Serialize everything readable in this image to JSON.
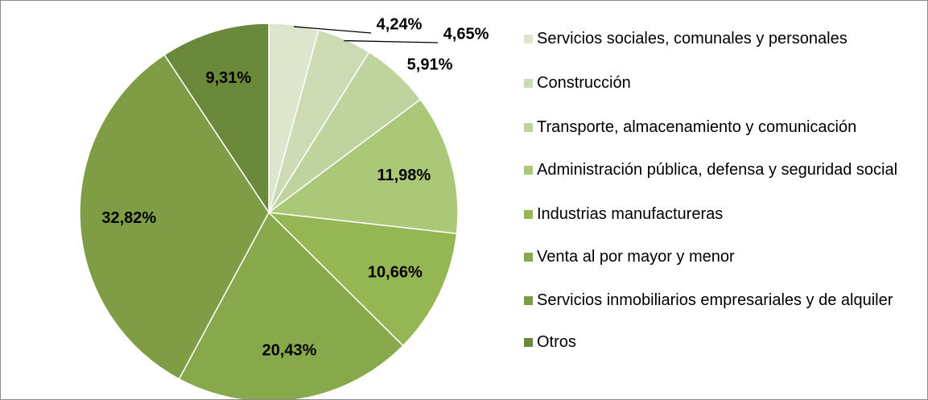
{
  "chart_data": {
    "type": "pie",
    "categories": [
      "Servicios sociales, comunales y personales",
      "Construcción",
      "Transporte, almacenamiento y comunicación",
      "Administración pública, defensa y seguridad social",
      "Industrias manufactureras",
      "Venta al por mayor y menor",
      "Servicios inmobiliarios empresariales y de alquiler",
      "Otros"
    ],
    "values": [
      4.24,
      4.65,
      5.91,
      11.98,
      10.66,
      20.43,
      32.82,
      9.31
    ],
    "value_labels": [
      "4,24%",
      "4,65%",
      "5,91%",
      "11,98%",
      "10,66%",
      "20,43%",
      "32,82%",
      "9,31%"
    ],
    "colors": [
      "#dde6cc",
      "#ccdbb4",
      "#bfd39e",
      "#aac877",
      "#94b653",
      "#88a94b",
      "#7e9d45",
      "#6b893a"
    ],
    "legend": "right"
  }
}
